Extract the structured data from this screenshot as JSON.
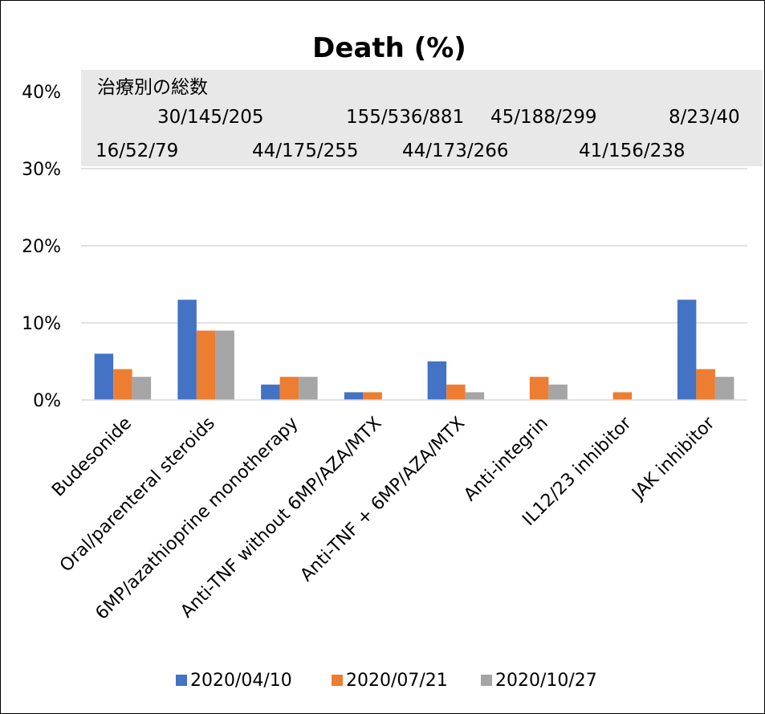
{
  "chart_data": {
    "type": "bar",
    "title": "Death (%)",
    "categories": [
      "Budesonide",
      "Oral/parenteral steroids",
      "6MP/azathioprine monotherapy",
      "Anti-TNF without 6MP/AZA/MTX",
      "Anti-TNF + 6MP/AZA/MTX",
      "Anti-integrin",
      "IL12/23 inhibitor",
      "JAK inhibitor"
    ],
    "series": [
      {
        "name": "2020/04/10",
        "color": "#4472C4",
        "values": [
          6,
          13,
          2,
          1,
          5,
          0,
          0,
          13
        ]
      },
      {
        "name": "2020/07/21",
        "color": "#ED7D31",
        "values": [
          4,
          9,
          3,
          1,
          2,
          3,
          1,
          4
        ]
      },
      {
        "name": "2020/10/27",
        "color": "#A5A5A5",
        "values": [
          3,
          9,
          3,
          0,
          1,
          2,
          0,
          3
        ]
      }
    ],
    "ylim": [
      0,
      40
    ],
    "yticks": [
      "0%",
      "10%",
      "20%",
      "30%",
      "40%"
    ],
    "ytick_values": [
      0,
      10,
      20,
      30,
      40
    ],
    "grid": true,
    "legend_position": "bottom",
    "annotation": {
      "heading": "治療別の総数",
      "totals": [
        "16/52/79",
        "30/145/205",
        "44/175/255",
        "155/536/881",
        "44/173/266",
        "45/188/299",
        "41/156/238",
        "8/23/40"
      ]
    }
  }
}
